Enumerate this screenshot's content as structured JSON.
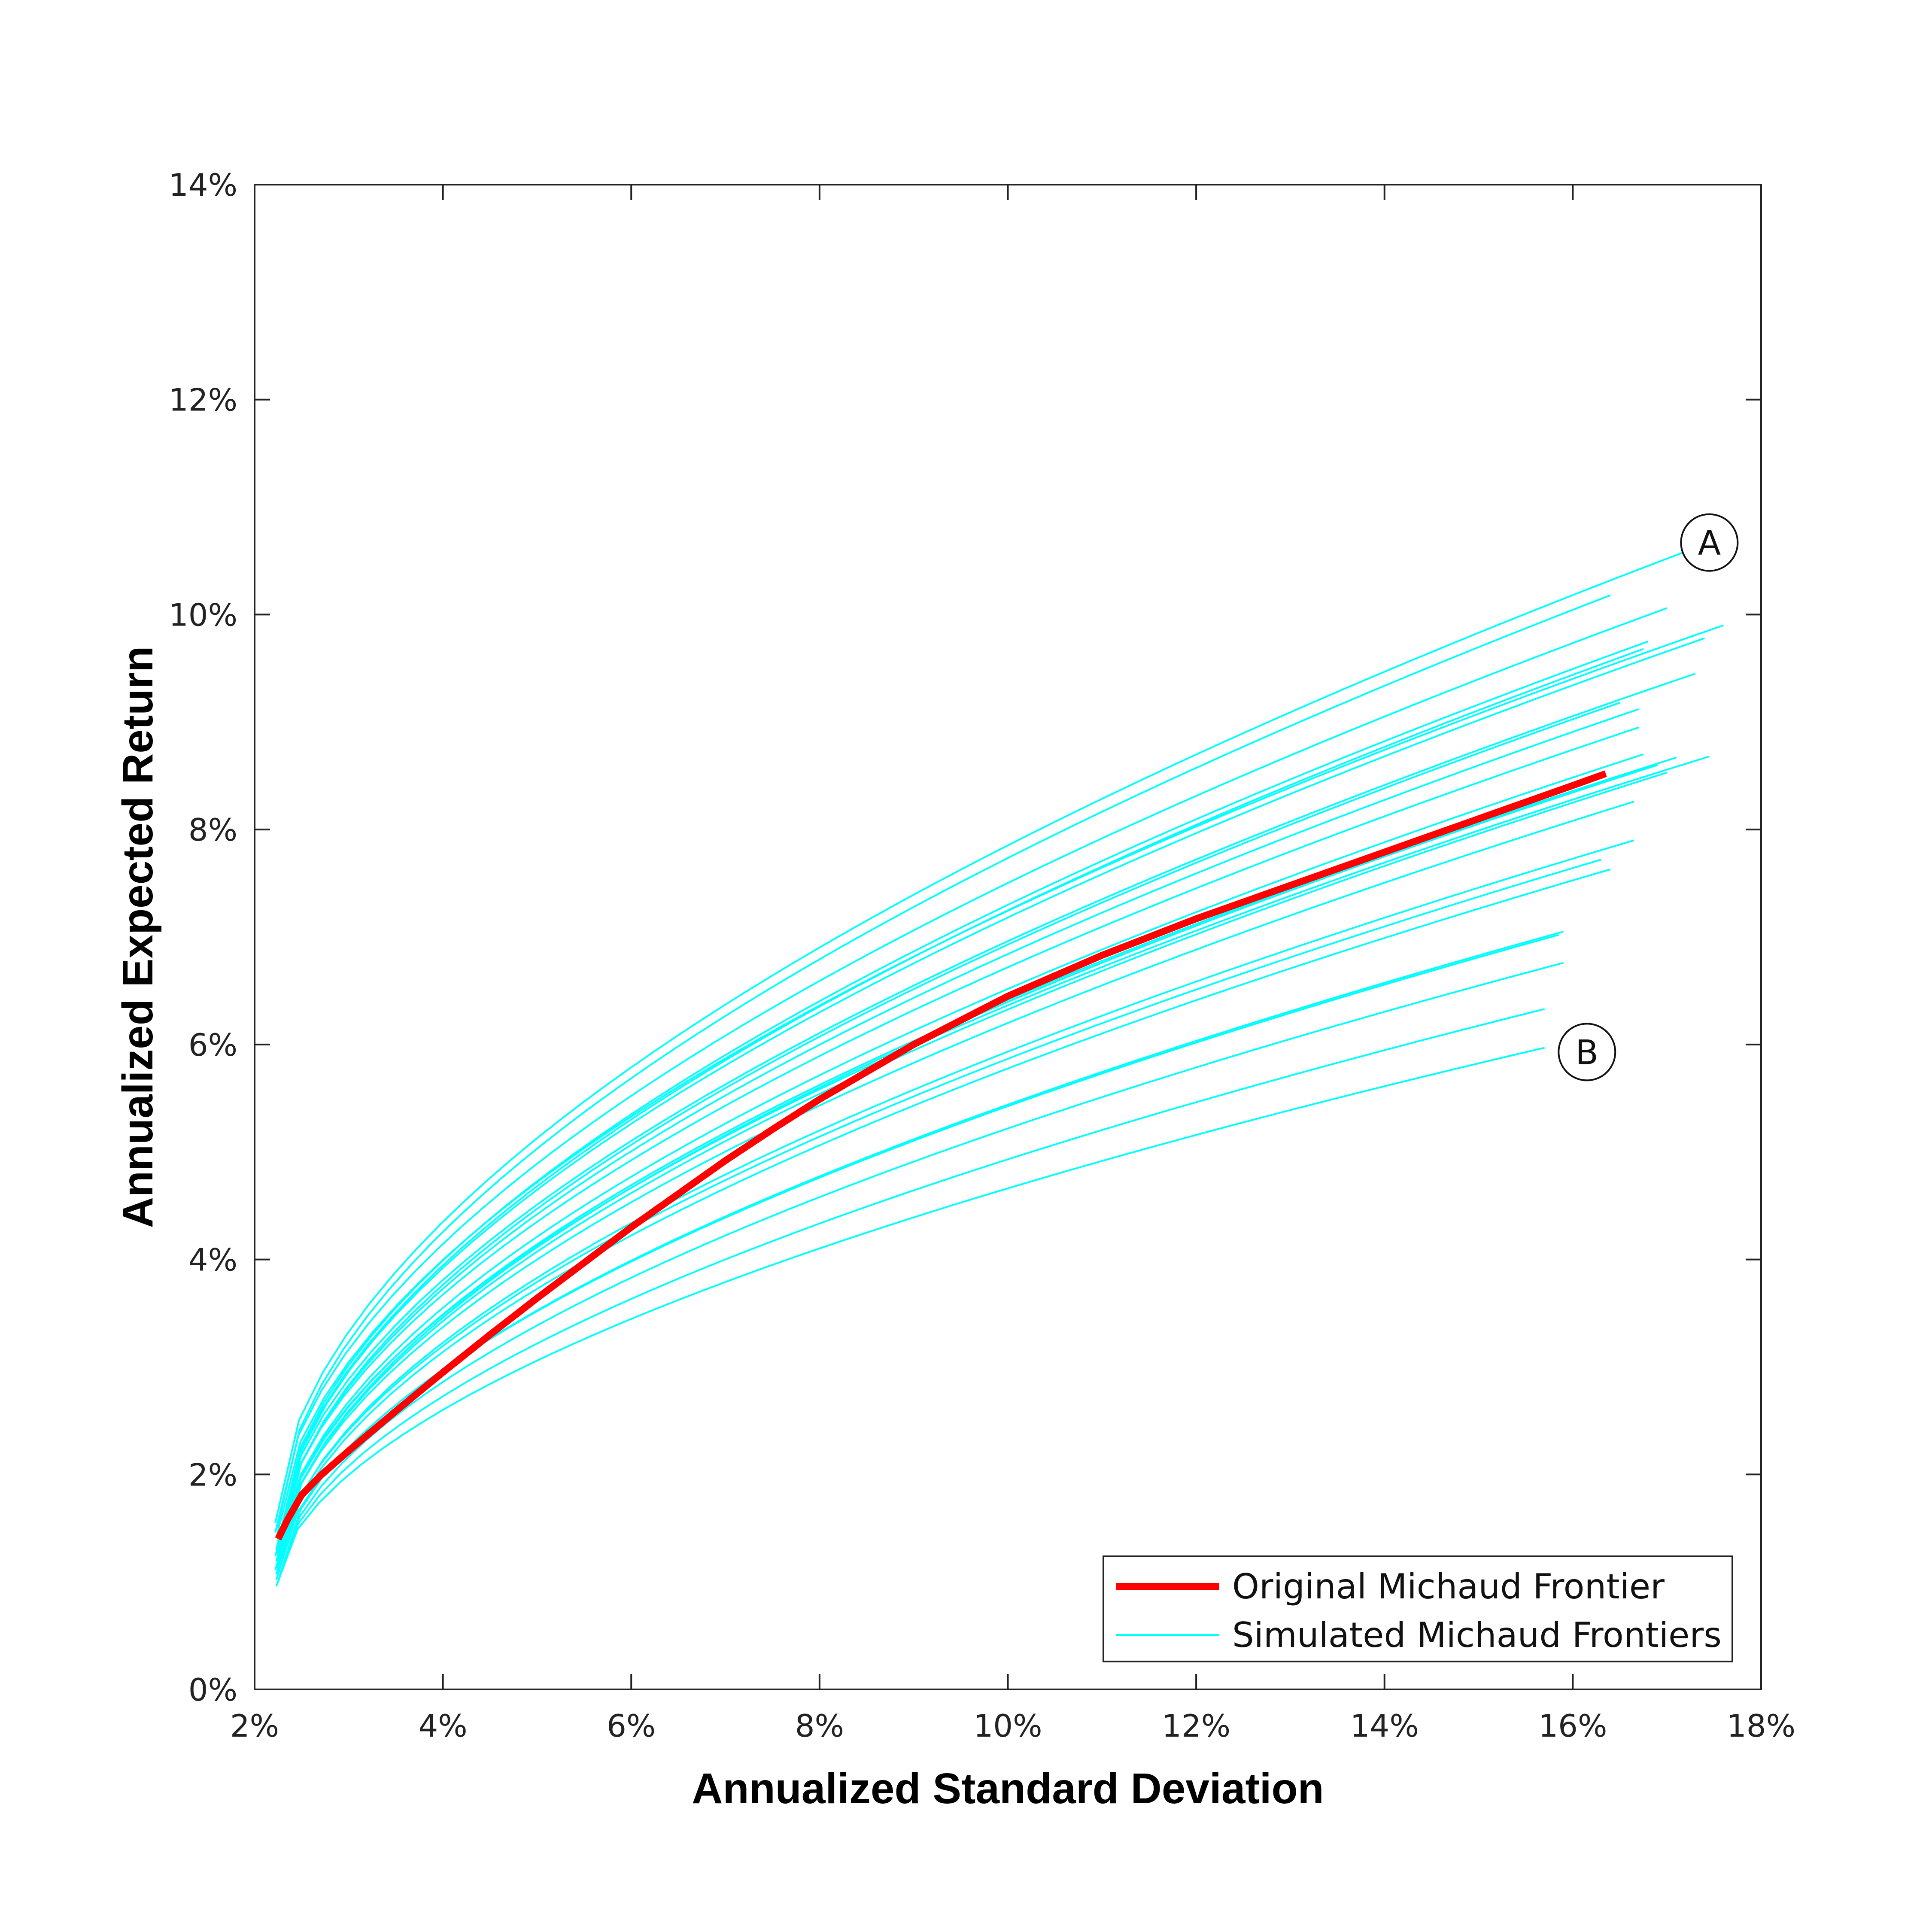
{
  "chart_data": {
    "type": "line",
    "title": "",
    "xlabel": "Annualized Standard Deviation",
    "ylabel": "Annualized Expected Return",
    "xlim": [
      0.02,
      0.18
    ],
    "ylim": [
      0,
      0.14
    ],
    "x_ticks": [
      0.02,
      0.04,
      0.06,
      0.08,
      0.1,
      0.12,
      0.14,
      0.16,
      0.18
    ],
    "y_ticks": [
      0,
      0.02,
      0.04,
      0.06,
      0.08,
      0.1,
      0.12,
      0.14
    ],
    "x_tick_labels": [
      "2%",
      "4%",
      "6%",
      "8%",
      "10%",
      "12%",
      "14%",
      "16%",
      "18%"
    ],
    "y_tick_labels": [
      "0%",
      "2%",
      "4%",
      "6%",
      "8%",
      "10%",
      "12%",
      "14%"
    ],
    "grid": false,
    "legend_position": "bottom-right",
    "legend": [
      {
        "label": "Original Michaud Frontier",
        "color": "#ff0000"
      },
      {
        "label": "Simulated Michaud Frontiers",
        "color": "#00ffff"
      }
    ],
    "annotations": [
      {
        "text": "A",
        "x": 0.1745,
        "y": 0.1067
      },
      {
        "text": "B",
        "x": 0.1615,
        "y": 0.0593
      }
    ],
    "original_frontier": {
      "name": "Original Michaud Frontier",
      "color": "#ff0000",
      "x": [
        0.0225,
        0.0235,
        0.025,
        0.027,
        0.03,
        0.035,
        0.04,
        0.045,
        0.05,
        0.055,
        0.06,
        0.065,
        0.07,
        0.075,
        0.08,
        0.09,
        0.1,
        0.11,
        0.12,
        0.13,
        0.14,
        0.15,
        0.16,
        0.1635
      ],
      "y": [
        0.014,
        0.0158,
        0.0181,
        0.0199,
        0.0222,
        0.0259,
        0.0295,
        0.033,
        0.0364,
        0.0397,
        0.043,
        0.0461,
        0.0492,
        0.0521,
        0.0549,
        0.06,
        0.0645,
        0.0683,
        0.0717,
        0.0748,
        0.0779,
        0.081,
        0.0841,
        0.0852
      ]
    },
    "simulated_frontiers": {
      "name": "Simulated Michaud Frontiers",
      "color": "#00ffff",
      "series": [
        {
          "x0": 0.0222,
          "y0": 0.0155,
          "x1": 0.173,
          "y1": 0.1062
        },
        {
          "x0": 0.0224,
          "y0": 0.015,
          "x1": 0.164,
          "y1": 0.1018
        },
        {
          "x0": 0.0222,
          "y0": 0.0146,
          "x1": 0.17,
          "y1": 0.1006
        },
        {
          "x0": 0.0223,
          "y0": 0.0141,
          "x1": 0.176,
          "y1": 0.099
        },
        {
          "x0": 0.0225,
          "y0": 0.0138,
          "x1": 0.168,
          "y1": 0.0975
        },
        {
          "x0": 0.0226,
          "y0": 0.0136,
          "x1": 0.174,
          "y1": 0.0978
        },
        {
          "x0": 0.0224,
          "y0": 0.0133,
          "x1": 0.1675,
          "y1": 0.0968
        },
        {
          "x0": 0.0223,
          "y0": 0.013,
          "x1": 0.173,
          "y1": 0.0945
        },
        {
          "x0": 0.0226,
          "y0": 0.0128,
          "x1": 0.165,
          "y1": 0.0918
        },
        {
          "x0": 0.0224,
          "y0": 0.0126,
          "x1": 0.167,
          "y1": 0.0912
        },
        {
          "x0": 0.0222,
          "y0": 0.0124,
          "x1": 0.167,
          "y1": 0.0895
        },
        {
          "x0": 0.0225,
          "y0": 0.0121,
          "x1": 0.1675,
          "y1": 0.087
        },
        {
          "x0": 0.0223,
          "y0": 0.0119,
          "x1": 0.1745,
          "y1": 0.0868
        },
        {
          "x0": 0.0224,
          "y0": 0.0117,
          "x1": 0.171,
          "y1": 0.0867
        },
        {
          "x0": 0.0226,
          "y0": 0.0115,
          "x1": 0.169,
          "y1": 0.086
        },
        {
          "x0": 0.0224,
          "y0": 0.0113,
          "x1": 0.17,
          "y1": 0.0853
        },
        {
          "x0": 0.0222,
          "y0": 0.0111,
          "x1": 0.1665,
          "y1": 0.0826
        },
        {
          "x0": 0.0225,
          "y0": 0.0109,
          "x1": 0.1665,
          "y1": 0.079
        },
        {
          "x0": 0.0223,
          "y0": 0.0107,
          "x1": 0.163,
          "y1": 0.0772
        },
        {
          "x0": 0.0224,
          "y0": 0.0105,
          "x1": 0.164,
          "y1": 0.0763
        },
        {
          "x0": 0.0226,
          "y0": 0.0104,
          "x1": 0.159,
          "y1": 0.0705
        },
        {
          "x0": 0.0223,
          "y0": 0.0102,
          "x1": 0.1585,
          "y1": 0.0702
        },
        {
          "x0": 0.0225,
          "y0": 0.01,
          "x1": 0.159,
          "y1": 0.0676
        },
        {
          "x0": 0.0224,
          "y0": 0.0098,
          "x1": 0.157,
          "y1": 0.0633
        },
        {
          "x0": 0.0223,
          "y0": 0.0096,
          "x1": 0.157,
          "y1": 0.0597
        }
      ]
    }
  }
}
